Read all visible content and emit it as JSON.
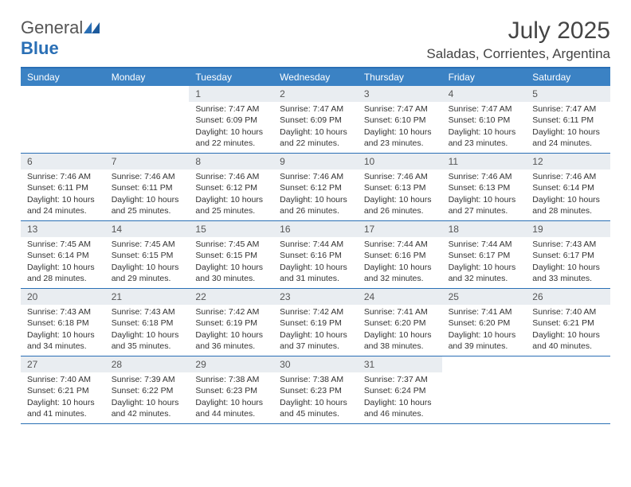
{
  "brand": {
    "name_part1": "General",
    "name_part2": "Blue"
  },
  "title": "July 2025",
  "location": "Saladas, Corrientes, Argentina",
  "colors": {
    "header_bg": "#3b82c4",
    "border": "#2a6fb5",
    "daynum_bg": "#e9edf1",
    "text": "#333333",
    "muted": "#555555"
  },
  "dayNames": [
    "Sunday",
    "Monday",
    "Tuesday",
    "Wednesday",
    "Thursday",
    "Friday",
    "Saturday"
  ],
  "weeks": [
    [
      {
        "empty": true
      },
      {
        "empty": true
      },
      {
        "day": "1",
        "sunrise": "Sunrise: 7:47 AM",
        "sunset": "Sunset: 6:09 PM",
        "daylight": "Daylight: 10 hours and 22 minutes."
      },
      {
        "day": "2",
        "sunrise": "Sunrise: 7:47 AM",
        "sunset": "Sunset: 6:09 PM",
        "daylight": "Daylight: 10 hours and 22 minutes."
      },
      {
        "day": "3",
        "sunrise": "Sunrise: 7:47 AM",
        "sunset": "Sunset: 6:10 PM",
        "daylight": "Daylight: 10 hours and 23 minutes."
      },
      {
        "day": "4",
        "sunrise": "Sunrise: 7:47 AM",
        "sunset": "Sunset: 6:10 PM",
        "daylight": "Daylight: 10 hours and 23 minutes."
      },
      {
        "day": "5",
        "sunrise": "Sunrise: 7:47 AM",
        "sunset": "Sunset: 6:11 PM",
        "daylight": "Daylight: 10 hours and 24 minutes."
      }
    ],
    [
      {
        "day": "6",
        "sunrise": "Sunrise: 7:46 AM",
        "sunset": "Sunset: 6:11 PM",
        "daylight": "Daylight: 10 hours and 24 minutes."
      },
      {
        "day": "7",
        "sunrise": "Sunrise: 7:46 AM",
        "sunset": "Sunset: 6:11 PM",
        "daylight": "Daylight: 10 hours and 25 minutes."
      },
      {
        "day": "8",
        "sunrise": "Sunrise: 7:46 AM",
        "sunset": "Sunset: 6:12 PM",
        "daylight": "Daylight: 10 hours and 25 minutes."
      },
      {
        "day": "9",
        "sunrise": "Sunrise: 7:46 AM",
        "sunset": "Sunset: 6:12 PM",
        "daylight": "Daylight: 10 hours and 26 minutes."
      },
      {
        "day": "10",
        "sunrise": "Sunrise: 7:46 AM",
        "sunset": "Sunset: 6:13 PM",
        "daylight": "Daylight: 10 hours and 26 minutes."
      },
      {
        "day": "11",
        "sunrise": "Sunrise: 7:46 AM",
        "sunset": "Sunset: 6:13 PM",
        "daylight": "Daylight: 10 hours and 27 minutes."
      },
      {
        "day": "12",
        "sunrise": "Sunrise: 7:46 AM",
        "sunset": "Sunset: 6:14 PM",
        "daylight": "Daylight: 10 hours and 28 minutes."
      }
    ],
    [
      {
        "day": "13",
        "sunrise": "Sunrise: 7:45 AM",
        "sunset": "Sunset: 6:14 PM",
        "daylight": "Daylight: 10 hours and 28 minutes."
      },
      {
        "day": "14",
        "sunrise": "Sunrise: 7:45 AM",
        "sunset": "Sunset: 6:15 PM",
        "daylight": "Daylight: 10 hours and 29 minutes."
      },
      {
        "day": "15",
        "sunrise": "Sunrise: 7:45 AM",
        "sunset": "Sunset: 6:15 PM",
        "daylight": "Daylight: 10 hours and 30 minutes."
      },
      {
        "day": "16",
        "sunrise": "Sunrise: 7:44 AM",
        "sunset": "Sunset: 6:16 PM",
        "daylight": "Daylight: 10 hours and 31 minutes."
      },
      {
        "day": "17",
        "sunrise": "Sunrise: 7:44 AM",
        "sunset": "Sunset: 6:16 PM",
        "daylight": "Daylight: 10 hours and 32 minutes."
      },
      {
        "day": "18",
        "sunrise": "Sunrise: 7:44 AM",
        "sunset": "Sunset: 6:17 PM",
        "daylight": "Daylight: 10 hours and 32 minutes."
      },
      {
        "day": "19",
        "sunrise": "Sunrise: 7:43 AM",
        "sunset": "Sunset: 6:17 PM",
        "daylight": "Daylight: 10 hours and 33 minutes."
      }
    ],
    [
      {
        "day": "20",
        "sunrise": "Sunrise: 7:43 AM",
        "sunset": "Sunset: 6:18 PM",
        "daylight": "Daylight: 10 hours and 34 minutes."
      },
      {
        "day": "21",
        "sunrise": "Sunrise: 7:43 AM",
        "sunset": "Sunset: 6:18 PM",
        "daylight": "Daylight: 10 hours and 35 minutes."
      },
      {
        "day": "22",
        "sunrise": "Sunrise: 7:42 AM",
        "sunset": "Sunset: 6:19 PM",
        "daylight": "Daylight: 10 hours and 36 minutes."
      },
      {
        "day": "23",
        "sunrise": "Sunrise: 7:42 AM",
        "sunset": "Sunset: 6:19 PM",
        "daylight": "Daylight: 10 hours and 37 minutes."
      },
      {
        "day": "24",
        "sunrise": "Sunrise: 7:41 AM",
        "sunset": "Sunset: 6:20 PM",
        "daylight": "Daylight: 10 hours and 38 minutes."
      },
      {
        "day": "25",
        "sunrise": "Sunrise: 7:41 AM",
        "sunset": "Sunset: 6:20 PM",
        "daylight": "Daylight: 10 hours and 39 minutes."
      },
      {
        "day": "26",
        "sunrise": "Sunrise: 7:40 AM",
        "sunset": "Sunset: 6:21 PM",
        "daylight": "Daylight: 10 hours and 40 minutes."
      }
    ],
    [
      {
        "day": "27",
        "sunrise": "Sunrise: 7:40 AM",
        "sunset": "Sunset: 6:21 PM",
        "daylight": "Daylight: 10 hours and 41 minutes."
      },
      {
        "day": "28",
        "sunrise": "Sunrise: 7:39 AM",
        "sunset": "Sunset: 6:22 PM",
        "daylight": "Daylight: 10 hours and 42 minutes."
      },
      {
        "day": "29",
        "sunrise": "Sunrise: 7:38 AM",
        "sunset": "Sunset: 6:23 PM",
        "daylight": "Daylight: 10 hours and 44 minutes."
      },
      {
        "day": "30",
        "sunrise": "Sunrise: 7:38 AM",
        "sunset": "Sunset: 6:23 PM",
        "daylight": "Daylight: 10 hours and 45 minutes."
      },
      {
        "day": "31",
        "sunrise": "Sunrise: 7:37 AM",
        "sunset": "Sunset: 6:24 PM",
        "daylight": "Daylight: 10 hours and 46 minutes."
      },
      {
        "empty": true
      },
      {
        "empty": true
      }
    ]
  ]
}
